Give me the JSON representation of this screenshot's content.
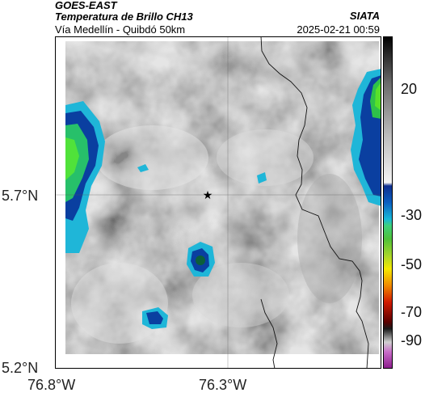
{
  "header": {
    "satellite": "GOES-EAST",
    "product": "Temperatura de Brillo CH13",
    "route": "Vía Medellín - Quibdó 50km",
    "organization": "SIATA",
    "datetime": "2025-02-21 00:59"
  },
  "axes": {
    "lat_ticks": [
      "5.7°N",
      "5.2°N"
    ],
    "lon_ticks": [
      "76.8°W",
      "76.3°W"
    ]
  },
  "colorbar": {
    "labels": [
      "20",
      "-30",
      "-50",
      "-70",
      "-90"
    ],
    "stops": [
      "#000000",
      "#6a6a6a",
      "#bdbdbd",
      "#f4f4f4",
      "#0f2f8f",
      "#0b5fc0",
      "#18b8d8",
      "#3fd07a",
      "#4fc13a",
      "#a8d62a",
      "#f5e800",
      "#f08a00",
      "#d11a00",
      "#5a0000",
      "#1a1a1a",
      "#d0d0d0",
      "#c86cc8",
      "#8a1a8a"
    ]
  },
  "map_marker": {
    "icon": "star-icon"
  }
}
